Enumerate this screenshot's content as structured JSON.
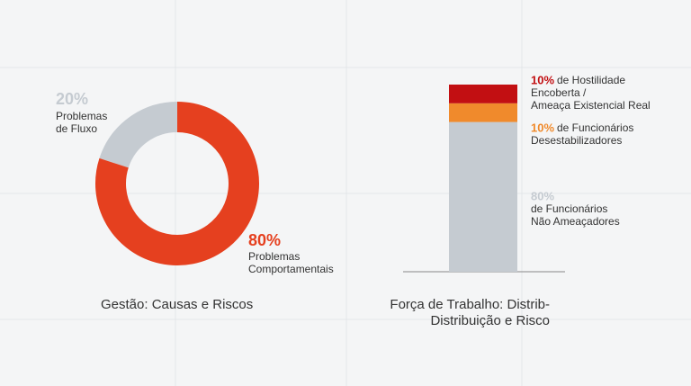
{
  "chart_data": [
    {
      "type": "pie",
      "title": "Gestão: Causas e Riscos",
      "categories": [
        [
          "Problemas",
          "de Fluxo"
        ],
        [
          "Problemas",
          "Comportamentais"
        ]
      ],
      "values": [
        20,
        80
      ],
      "value_labels": [
        "20%",
        "80%"
      ],
      "colors": [
        "#c5cbd1",
        "#e5401f"
      ]
    },
    {
      "type": "bar",
      "title": [
        "Força de Trabalho: Distrib-",
        "Distribuição e Risco"
      ],
      "ylim": [
        0,
        100
      ],
      "stacked": true,
      "series": [
        {
          "name": [
            "de Funcionários",
            "Não Ameaçadores"
          ],
          "color": "#c5cbd1",
          "values": [
            80
          ],
          "value_labels": [
            "80%"
          ]
        },
        {
          "name": [
            "de Funcionários",
            "Desestabilizadores"
          ],
          "color": "#f08a2c",
          "values": [
            10
          ],
          "value_labels": [
            "10%"
          ]
        },
        {
          "name": [
            "de Hostilidade",
            "Encoberta /",
            "Ameaça Existencial Real"
          ],
          "color": "#c20f12",
          "values": [
            10
          ],
          "value_labels": [
            "10%"
          ]
        }
      ]
    }
  ]
}
